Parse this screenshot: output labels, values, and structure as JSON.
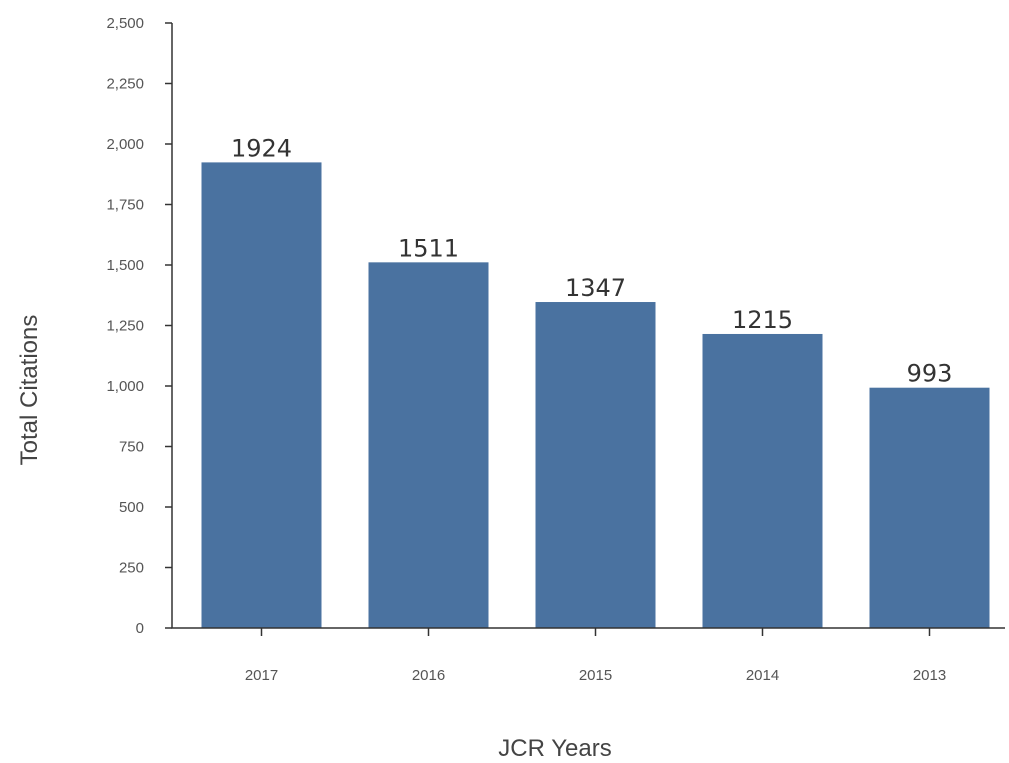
{
  "chart_data": {
    "type": "bar",
    "categories": [
      "2017",
      "2016",
      "2015",
      "2014",
      "2013"
    ],
    "values": [
      1924,
      1511,
      1347,
      1215,
      993
    ],
    "data_labels": [
      "1924",
      "1511",
      "1347",
      "1215",
      "993"
    ],
    "xlabel": "JCR Years",
    "ylabel": "Total Citations",
    "ylim": [
      0,
      2500
    ],
    "yticks": [
      0,
      250,
      500,
      750,
      1000,
      1250,
      1500,
      1750,
      2000,
      2250,
      2500
    ],
    "ytick_labels": [
      "0",
      "250",
      "500",
      "750",
      "1,000",
      "1,250",
      "1,500",
      "1,750",
      "2,000",
      "2,250",
      "2,500"
    ],
    "bar_color": "#4a72a0",
    "grid": false,
    "legend": false
  }
}
